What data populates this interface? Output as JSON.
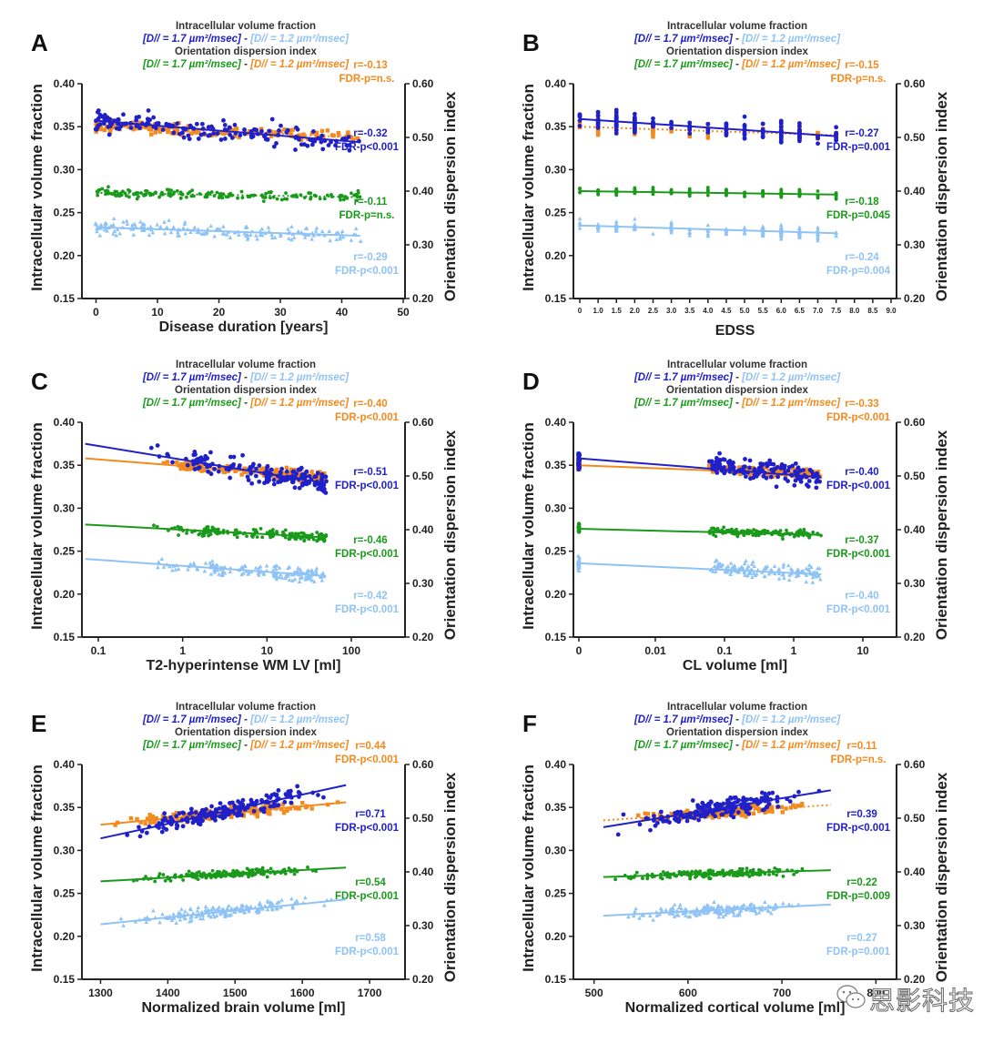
{
  "header_lines": {
    "ivf_title": "Intracellular volume fraction",
    "ivf_a": "[D// = 1.7 µm²/msec]",
    "sep": " - ",
    "ivf_b": "[D// = 1.2 µm²/msec]",
    "odi_title": "Orientation dispersion index",
    "odi_a": "[D// = 1.7 µm²/msec]",
    "odi_b": "[D// = 1.2 µm²/msec]"
  },
  "colors": {
    "ivf_17": "#2020c8",
    "ivf_12": "#8fc3f5",
    "odi_17": "#1a9a1a",
    "odi_12": "#f28a1e",
    "axis": "#222222"
  },
  "watermark": "思影科技",
  "chart_data": [
    {
      "panel": "A",
      "type": "scatter",
      "xlabel": "Disease duration [years]",
      "ylabel": "Intracellular volume fraction",
      "y2label": "Orientation dispersion index",
      "xscale": "linear",
      "xlim": [
        -2,
        50
      ],
      "xticks": [
        0,
        10,
        20,
        30,
        40,
        50
      ],
      "xticklabels": [
        "0",
        "10",
        "20",
        "30",
        "40",
        "50"
      ],
      "ylim": [
        0.15,
        0.4
      ],
      "yticklabels": [
        "0.40",
        "0.35",
        "0.30",
        "0.25",
        "0.20",
        "0.15"
      ],
      "y2lim": [
        0.2,
        0.6
      ],
      "y2ticklabels": [
        "0.60",
        "0.50",
        "0.40",
        "0.30",
        "0.20"
      ],
      "xdata_range": [
        0,
        43
      ],
      "series": [
        {
          "name": "ODI D//=1.2",
          "color_key": "odi_12",
          "marker": "square",
          "fit": "dotted",
          "center": 0.345,
          "spread": 0.008,
          "fit_y": [
            0.352,
            0.337
          ],
          "r": "r=-0.13",
          "p": "FDR-p=n.s."
        },
        {
          "name": "ICVF D//=1.7",
          "color_key": "ivf_17",
          "marker": "circle",
          "fit": "solid",
          "center": 0.345,
          "spread": 0.016,
          "fit_y": [
            0.357,
            0.332
          ],
          "r": "r=-0.32",
          "p": "FDR-p<0.001"
        },
        {
          "name": "ODI D//=1.7",
          "color_key": "odi_17",
          "marker": "circle-small",
          "fit": "dotted",
          "center": 0.272,
          "spread": 0.007,
          "fit_y": [
            0.273,
            0.268
          ],
          "r": "r=-0.11",
          "p": "FDR-p=n.s."
        },
        {
          "name": "ICVF D//=1.2",
          "color_key": "ivf_12",
          "marker": "triangle",
          "fit": "solid",
          "center": 0.228,
          "spread": 0.011,
          "fit_y": [
            0.233,
            0.223
          ],
          "r": "r=-0.29",
          "p": "FDR-p<0.001"
        }
      ]
    },
    {
      "panel": "B",
      "type": "scatter",
      "xlabel": "EDSS",
      "ylabel": "Intracellular volume fraction",
      "y2label": "Orientation dispersion index",
      "xscale": "category",
      "xlim": [
        -0.3,
        9.3
      ],
      "xticks": [
        0,
        1.0,
        1.5,
        2.0,
        2.5,
        3.0,
        3.5,
        4.0,
        4.5,
        5.0,
        5.5,
        6.0,
        6.5,
        7.0,
        7.5,
        8.0,
        8.5,
        9.0
      ],
      "xticklabels": [
        "0",
        "1.0",
        "1.5",
        "2.0",
        "2.5",
        "3.0",
        "3.5",
        "4.0",
        "4.5",
        "5.0",
        "5.5",
        "6.0",
        "6.5",
        "7.0",
        "7.5",
        "8.0",
        "8.5",
        "9.0"
      ],
      "ylim": [
        0.15,
        0.4
      ],
      "yticklabels": [
        "0.40",
        "0.35",
        "0.30",
        "0.25",
        "0.20",
        "0.15"
      ],
      "y2lim": [
        0.2,
        0.6
      ],
      "y2ticklabels": [
        "0.60",
        "0.50",
        "0.40",
        "0.30",
        "0.20"
      ],
      "xdata_range": [
        0,
        7.5
      ],
      "series": [
        {
          "name": "ODI D//=1.2",
          "color_key": "odi_12",
          "marker": "square",
          "fit": "dotted",
          "center": 0.345,
          "spread": 0.008,
          "fit_y": [
            0.35,
            0.34
          ],
          "r": "r=-0.15",
          "p": "FDR-p=n.s."
        },
        {
          "name": "ICVF D//=1.7",
          "color_key": "ivf_17",
          "marker": "circle",
          "fit": "solid",
          "center": 0.347,
          "spread": 0.015,
          "fit_y": [
            0.359,
            0.339
          ],
          "r": "r=-0.27",
          "p": "FDR-p=0.001"
        },
        {
          "name": "ODI D//=1.7",
          "color_key": "odi_17",
          "marker": "circle-small",
          "fit": "solid",
          "center": 0.273,
          "spread": 0.006,
          "fit_y": [
            0.275,
            0.271
          ],
          "r": "r=-0.18",
          "p": "FDR-p=0.045"
        },
        {
          "name": "ICVF D//=1.2",
          "color_key": "ivf_12",
          "marker": "triangle",
          "fit": "solid",
          "center": 0.23,
          "spread": 0.01,
          "fit_y": [
            0.235,
            0.226
          ],
          "r": "r=-0.24",
          "p": "FDR-p=0.004"
        }
      ]
    },
    {
      "panel": "C",
      "type": "scatter",
      "xlabel": "T2-hyperintense WM LV [ml]",
      "ylabel": "Intracellular volume fraction",
      "y2label": "Orientation dispersion index",
      "xscale": "log",
      "xlim": [
        0.03,
        500
      ],
      "xticks": [
        0.1,
        1,
        10,
        100
      ],
      "xticklabels": [
        "0.1",
        "1",
        "10",
        "100"
      ],
      "ylim": [
        0.15,
        0.4
      ],
      "yticklabels": [
        "0.40",
        "0.35",
        "0.30",
        "0.25",
        "0.20",
        "0.15"
      ],
      "y2lim": [
        0.2,
        0.6
      ],
      "y2ticklabels": [
        "0.60",
        "0.50",
        "0.40",
        "0.30",
        "0.20"
      ],
      "xdata_range": [
        0.07,
        50
      ],
      "series": [
        {
          "name": "ODI D//=1.2",
          "color_key": "odi_12",
          "marker": "square",
          "fit": "solid",
          "center": 0.345,
          "spread": 0.008,
          "fit_y": [
            0.358,
            0.336
          ],
          "r": "r=-0.40",
          "p": "FDR-p<0.001"
        },
        {
          "name": "ICVF D//=1.7",
          "color_key": "ivf_17",
          "marker": "circle",
          "fit": "solid",
          "center": 0.345,
          "spread": 0.016,
          "fit_y": [
            0.375,
            0.329
          ],
          "r": "r=-0.51",
          "p": "FDR-p<0.001"
        },
        {
          "name": "ODI D//=1.7",
          "color_key": "odi_17",
          "marker": "circle-small",
          "fit": "solid",
          "center": 0.273,
          "spread": 0.007,
          "fit_y": [
            0.281,
            0.266
          ],
          "r": "r=-0.46",
          "p": "FDR-p<0.001"
        },
        {
          "name": "ICVF D//=1.2",
          "color_key": "ivf_12",
          "marker": "triangle",
          "fit": "solid",
          "center": 0.229,
          "spread": 0.011,
          "fit_y": [
            0.241,
            0.221
          ],
          "r": "r=-0.42",
          "p": "FDR-p<0.001"
        }
      ]
    },
    {
      "panel": "D",
      "type": "scatter",
      "xlabel": "CL volume [ml]",
      "ylabel": "Intracellular volume fraction",
      "y2label": "Orientation dispersion index",
      "xscale": "log-zero",
      "xlim": [
        0.001,
        20
      ],
      "xticks": [
        0,
        0.01,
        0.1,
        1,
        10
      ],
      "xticklabels": [
        "0",
        "0.01",
        "0.1",
        "1",
        "10"
      ],
      "ylim": [
        0.15,
        0.4
      ],
      "yticklabels": [
        "0.40",
        "0.35",
        "0.30",
        "0.25",
        "0.20",
        "0.15"
      ],
      "y2lim": [
        0.2,
        0.6
      ],
      "y2ticklabels": [
        "0.60",
        "0.50",
        "0.40",
        "0.30",
        "0.20"
      ],
      "xdata_range": [
        0.012,
        2.5
      ],
      "series": [
        {
          "name": "ODI D//=1.2",
          "color_key": "odi_12",
          "marker": "square",
          "fit": "solid",
          "center": 0.343,
          "spread": 0.007,
          "fit_y": [
            0.35,
            0.339
          ],
          "r": "r=-0.33",
          "p": "FDR-p<0.001"
        },
        {
          "name": "ICVF D//=1.7",
          "color_key": "ivf_17",
          "marker": "circle",
          "fit": "solid",
          "center": 0.342,
          "spread": 0.016,
          "fit_y": [
            0.358,
            0.336
          ],
          "r": "r=-0.40",
          "p": "FDR-p<0.001"
        },
        {
          "name": "ODI D//=1.7",
          "color_key": "odi_17",
          "marker": "circle-small",
          "fit": "solid",
          "center": 0.272,
          "spread": 0.006,
          "fit_y": [
            0.276,
            0.269
          ],
          "r": "r=-0.37",
          "p": "FDR-p<0.001"
        },
        {
          "name": "ICVF D//=1.2",
          "color_key": "ivf_12",
          "marker": "triangle",
          "fit": "solid",
          "center": 0.227,
          "spread": 0.011,
          "fit_y": [
            0.236,
            0.223
          ],
          "r": "r=-0.40",
          "p": "FDR-p<0.001"
        }
      ]
    },
    {
      "panel": "E",
      "type": "scatter",
      "xlabel": "Normalized brain volume [ml]",
      "ylabel": "Intracellular volume fraction",
      "y2label": "Orientation dispersion index",
      "xscale": "linear",
      "xlim": [
        1275,
        1750
      ],
      "xticks": [
        1300,
        1400,
        1500,
        1600,
        1700
      ],
      "xticklabels": [
        "1300",
        "1400",
        "1500",
        "1600",
        "1700"
      ],
      "ylim": [
        0.15,
        0.4
      ],
      "yticklabels": [
        "0.40",
        "0.35",
        "0.30",
        "0.25",
        "0.20",
        "0.15"
      ],
      "y2lim": [
        0.2,
        0.6
      ],
      "y2ticklabels": [
        "0.60",
        "0.50",
        "0.40",
        "0.30",
        "0.20"
      ],
      "xdata_range": [
        1300,
        1665
      ],
      "series": [
        {
          "name": "ODI D//=1.2",
          "color_key": "odi_12",
          "marker": "square",
          "fit": "solid",
          "center": 0.343,
          "spread": 0.008,
          "fit_y": [
            0.33,
            0.356
          ],
          "r": "r=0.44",
          "p": "FDR-p<0.001"
        },
        {
          "name": "ICVF D//=1.7",
          "color_key": "ivf_17",
          "marker": "circle",
          "fit": "solid",
          "center": 0.345,
          "spread": 0.014,
          "fit_y": [
            0.314,
            0.376
          ],
          "r": "r=0.71",
          "p": "FDR-p<0.001"
        },
        {
          "name": "ODI D//=1.7",
          "color_key": "odi_17",
          "marker": "circle-small",
          "fit": "solid",
          "center": 0.272,
          "spread": 0.006,
          "fit_y": [
            0.264,
            0.28
          ],
          "r": "r=0.54",
          "p": "FDR-p<0.001"
        },
        {
          "name": "ICVF D//=1.2",
          "color_key": "ivf_12",
          "marker": "triangle",
          "fit": "solid",
          "center": 0.228,
          "spread": 0.01,
          "fit_y": [
            0.214,
            0.243
          ],
          "r": "r=0.58",
          "p": "FDR-p<0.001"
        }
      ]
    },
    {
      "panel": "F",
      "type": "scatter",
      "xlabel": "Normalized cortical volume [ml]",
      "ylabel": "Intracellular volume fraction",
      "y2label": "Orientation dispersion index",
      "xscale": "linear",
      "xlim": [
        480,
        820
      ],
      "xticks": [
        500,
        600,
        700,
        800
      ],
      "xticklabels": [
        "500",
        "600",
        "700",
        "800"
      ],
      "ylim": [
        0.15,
        0.4
      ],
      "yticklabels": [
        "0.40",
        "0.35",
        "0.30",
        "0.25",
        "0.20",
        "0.15"
      ],
      "y2lim": [
        0.2,
        0.6
      ],
      "y2ticklabels": [
        "0.60",
        "0.50",
        "0.40",
        "0.30",
        "0.20"
      ],
      "xdata_range": [
        510,
        752
      ],
      "series": [
        {
          "name": "ODI D//=1.2",
          "color_key": "odi_12",
          "marker": "square",
          "fit": "dotted",
          "center": 0.344,
          "spread": 0.007,
          "fit_y": [
            0.335,
            0.353
          ],
          "r": "r=0.11",
          "p": "FDR-p=n.s."
        },
        {
          "name": "ICVF D//=1.7",
          "color_key": "ivf_17",
          "marker": "circle",
          "fit": "solid",
          "center": 0.344,
          "spread": 0.015,
          "fit_y": [
            0.327,
            0.37
          ],
          "r": "r=0.39",
          "p": "FDR-p<0.001"
        },
        {
          "name": "ODI D//=1.7",
          "color_key": "odi_17",
          "marker": "circle-small",
          "fit": "solid",
          "center": 0.272,
          "spread": 0.006,
          "fit_y": [
            0.269,
            0.277
          ],
          "r": "r=0.22",
          "p": "FDR-p=0.009"
        },
        {
          "name": "ICVF D//=1.2",
          "color_key": "ivf_12",
          "marker": "triangle",
          "fit": "solid",
          "center": 0.229,
          "spread": 0.01,
          "fit_y": [
            0.224,
            0.237
          ],
          "r": "r=0.27",
          "p": "FDR-p=0.001"
        }
      ]
    }
  ]
}
